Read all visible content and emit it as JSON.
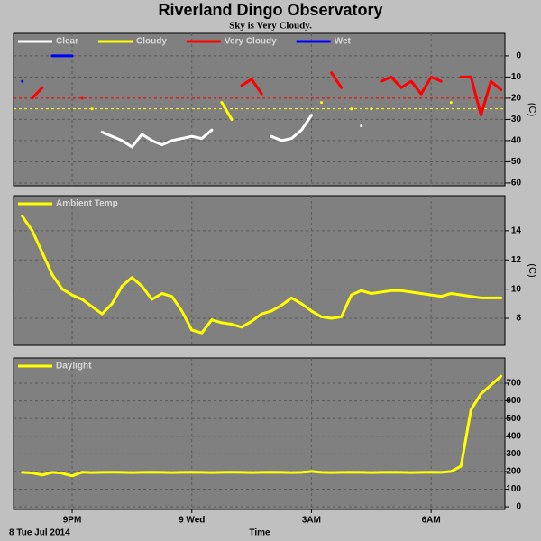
{
  "chart_data": [
    {
      "type": "line",
      "title": "Riverland Dingo Observatory",
      "subtitle": "Sky is Very Cloudy.",
      "ylabel": "(C)",
      "x": [
        19.75,
        20,
        20.25,
        20.5,
        20.75,
        21,
        21.25,
        21.5,
        21.75,
        22,
        22.25,
        22.5,
        22.75,
        23,
        23.25,
        23.5,
        23.75,
        24,
        24.25,
        24.5,
        24.75,
        25,
        25.25,
        25.5,
        25.75,
        26,
        26.25,
        26.5,
        26.75,
        27,
        27.25,
        27.5,
        27.75,
        28,
        28.25,
        28.5,
        28.75,
        29,
        29.25,
        29.5,
        29.75,
        30,
        30.25,
        30.5,
        30.75,
        31,
        31.25,
        31.5,
        31.75
      ],
      "series": [
        {
          "name": "Clear",
          "color": "#ffffff",
          "values": [
            null,
            null,
            null,
            null,
            null,
            null,
            null,
            null,
            -36,
            -38,
            -40,
            -43,
            -37,
            -40,
            -42,
            -40,
            -39,
            -38,
            -39,
            -35,
            null,
            null,
            null,
            null,
            null,
            -38,
            -40,
            -39,
            -35,
            -28,
            null,
            null,
            null,
            null,
            -33,
            null,
            null,
            null,
            null,
            null,
            null,
            null,
            null,
            null,
            null,
            null,
            null,
            null,
            null
          ]
        },
        {
          "name": "Cloudy",
          "color": "#ffff00",
          "values": [
            null,
            null,
            null,
            null,
            null,
            null,
            null,
            -25,
            null,
            null,
            null,
            null,
            null,
            null,
            null,
            null,
            null,
            null,
            null,
            null,
            -22,
            -30,
            null,
            null,
            null,
            null,
            null,
            null,
            null,
            null,
            -22,
            null,
            null,
            -25,
            null,
            -25,
            null,
            null,
            null,
            null,
            null,
            null,
            null,
            -22,
            null,
            null,
            null,
            null,
            null
          ]
        },
        {
          "name": "Very Cloudy",
          "color": "#ff0000",
          "values": [
            null,
            -20,
            -15,
            null,
            null,
            null,
            -20,
            null,
            null,
            null,
            null,
            null,
            null,
            null,
            null,
            null,
            null,
            null,
            null,
            null,
            null,
            null,
            -14,
            -11,
            -18,
            null,
            null,
            null,
            null,
            null,
            null,
            -8,
            -15,
            null,
            null,
            null,
            -12,
            -10,
            -15,
            -12,
            -18,
            -10,
            -12,
            null,
            -10,
            -10,
            -28,
            -12,
            -16
          ]
        },
        {
          "name": "Wet",
          "color": "#0000ff",
          "values": [
            -12,
            null,
            null,
            0,
            0,
            0,
            null,
            null,
            null,
            null,
            null,
            null,
            null,
            null,
            null,
            null,
            null,
            null,
            null,
            null,
            null,
            null,
            null,
            null,
            null,
            null,
            null,
            null,
            null,
            null,
            null,
            null,
            null,
            null,
            null,
            null,
            null,
            null,
            null,
            null,
            null,
            null,
            null,
            null,
            null,
            null,
            null,
            null,
            null
          ]
        }
      ],
      "reference_lines": [
        {
          "value": -20,
          "color": "#ff0000"
        },
        {
          "value": -25,
          "color": "#ffff00"
        }
      ],
      "xlim": [
        19.53,
        31.85
      ],
      "xticks": [
        21,
        24,
        27,
        30
      ],
      "ylim": [
        -61.3,
        10.6
      ],
      "yticks": [
        0,
        -10,
        -20,
        -30,
        -40,
        -50,
        -60
      ],
      "grid": true
    },
    {
      "type": "line",
      "ylabel": "(C)",
      "x": [
        19.75,
        20,
        20.25,
        20.5,
        20.75,
        21,
        21.25,
        21.5,
        21.75,
        22,
        22.25,
        22.5,
        22.75,
        23,
        23.25,
        23.5,
        23.75,
        24,
        24.25,
        24.5,
        24.75,
        25,
        25.25,
        25.5,
        25.75,
        26,
        26.25,
        26.5,
        26.75,
        27,
        27.25,
        27.5,
        27.75,
        28,
        28.25,
        28.5,
        28.75,
        29,
        29.25,
        29.5,
        29.75,
        30,
        30.25,
        30.5,
        30.75,
        31,
        31.25,
        31.5,
        31.75
      ],
      "series": [
        {
          "name": "Ambient Temp",
          "color": "#ffff00",
          "values": [
            15.0,
            14.0,
            12.5,
            11.0,
            10.0,
            9.6,
            9.3,
            8.8,
            8.3,
            9.0,
            10.2,
            10.8,
            10.2,
            9.3,
            9.7,
            9.5,
            8.5,
            7.2,
            7.0,
            7.9,
            7.7,
            7.6,
            7.4,
            7.8,
            8.3,
            8.5,
            8.9,
            9.4,
            9.0,
            8.5,
            8.1,
            8.0,
            8.1,
            9.6,
            9.9,
            9.7,
            9.8,
            9.9,
            9.9,
            9.8,
            9.7,
            9.6,
            9.5,
            9.7,
            9.6,
            9.5,
            9.4,
            9.4,
            9.4
          ]
        }
      ],
      "xlim": [
        19.53,
        31.85
      ],
      "xticks": [
        21,
        24,
        27,
        30
      ],
      "ylim": [
        6.15,
        16.4
      ],
      "yticks": [
        8,
        10,
        12,
        14
      ],
      "grid": true
    },
    {
      "type": "line",
      "xlabel": "Time",
      "date_label": "8 Tue Jul 2014",
      "x": [
        19.75,
        20,
        20.25,
        20.5,
        20.75,
        21,
        21.25,
        21.5,
        21.75,
        22,
        22.25,
        22.5,
        22.75,
        23,
        23.25,
        23.5,
        23.75,
        24,
        24.25,
        24.5,
        24.75,
        25,
        25.25,
        25.5,
        25.75,
        26,
        26.25,
        26.5,
        26.75,
        27,
        27.25,
        27.5,
        27.75,
        28,
        28.25,
        28.5,
        28.75,
        29,
        29.25,
        29.5,
        29.75,
        30,
        30.25,
        30.5,
        30.75,
        31,
        31.25,
        31.5,
        31.75
      ],
      "series": [
        {
          "name": "Daylight",
          "color": "#ffff00",
          "values": [
            195,
            192,
            180,
            195,
            190,
            175,
            196,
            194,
            195,
            196,
            195,
            194,
            195,
            196,
            195,
            194,
            195,
            196,
            195,
            194,
            195,
            196,
            195,
            194,
            195,
            196,
            195,
            194,
            195,
            200,
            195,
            194,
            195,
            196,
            195,
            194,
            195,
            196,
            195,
            194,
            195,
            196,
            195,
            200,
            230,
            550,
            640,
            690,
            740
          ]
        }
      ],
      "xlim": [
        19.53,
        31.85
      ],
      "xticks": [
        {
          "value": 21,
          "label": "9PM"
        },
        {
          "value": 24,
          "label": "9 Wed"
        },
        {
          "value": 27,
          "label": "3AM"
        },
        {
          "value": 30,
          "label": "6AM"
        }
      ],
      "ylim": [
        -15,
        843
      ],
      "yticks": [
        0,
        100,
        200,
        300,
        400,
        500,
        600,
        700
      ],
      "grid": true
    }
  ]
}
